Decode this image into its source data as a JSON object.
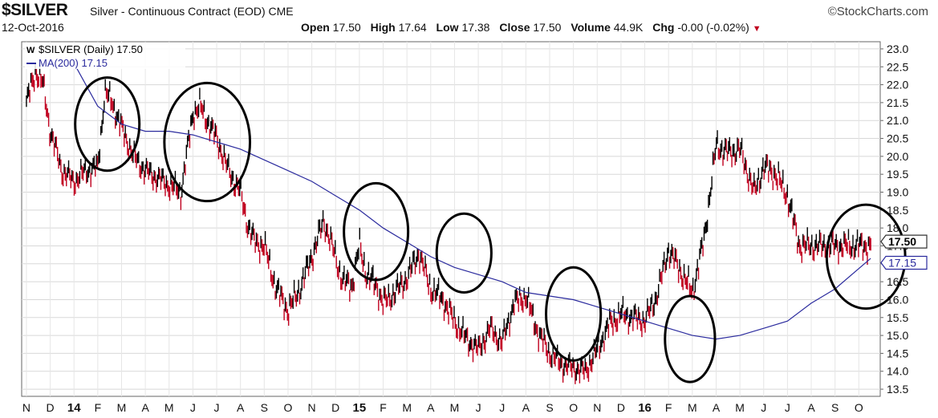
{
  "header": {
    "symbol": "$SILVER",
    "description": "Silver - Continuous Contract (EOD) CME",
    "date": "12-Oct-2016",
    "brand": "©StockCharts.com",
    "open_label": "Open",
    "open_value": "17.50",
    "high_label": "High",
    "high_value": "17.64",
    "low_label": "Low",
    "low_value": "17.38",
    "close_label": "Close",
    "close_value": "17.50",
    "volume_label": "Volume",
    "volume_value": "44.9K",
    "chg_label": "Chg",
    "chg_value": "-0.00 (-0.02%)",
    "chg_arrow": "▼"
  },
  "legend": {
    "price_entry": "$SILVER (Daily) 17.50",
    "ma_entry": "MA(200) 17.15"
  },
  "colors": {
    "up": "#000000",
    "down": "#c0001e",
    "ma": "#2b2b9e",
    "circle": "#000000"
  },
  "chart_data": {
    "type": "line",
    "style": "price bars (up black, down red) with moving-average overlay",
    "y_axis": {
      "side": "right",
      "ylim": [
        13.3,
        23.2
      ],
      "ticks": [
        "13.5",
        "14.0",
        "14.5",
        "15.0",
        "15.5",
        "16.0",
        "16.5",
        "17.0",
        "17.5",
        "18.0",
        "18.5",
        "19.0",
        "19.5",
        "20.0",
        "20.5",
        "21.0",
        "21.5",
        "22.0",
        "22.5",
        "23.0"
      ]
    },
    "x_axis": {
      "months": [
        "N",
        "D",
        "14",
        "F",
        "M",
        "A",
        "M",
        "J",
        "J",
        "A",
        "S",
        "O",
        "N",
        "D",
        "15",
        "F",
        "M",
        "A",
        "M",
        "J",
        "J",
        "A",
        "S",
        "O",
        "N",
        "D",
        "16",
        "F",
        "M",
        "A",
        "M",
        "J",
        "J",
        "A",
        "S",
        "O"
      ],
      "bold_labels": [
        "14",
        "15",
        "16"
      ]
    },
    "grid": true,
    "last_price_label": "17.50",
    "last_ma_label": "17.15",
    "series": [
      {
        "name": "$SILVER (Daily)",
        "x": [
          0,
          0.4,
          0.7,
          1,
          1.5,
          2,
          2.5,
          3,
          3.3,
          3.6,
          4,
          4.5,
          5,
          5.5,
          6,
          6.5,
          7,
          7.3,
          7.6,
          8,
          8.5,
          9,
          9.3,
          9.6,
          10,
          10.5,
          11,
          11.5,
          12,
          12.5,
          12.9,
          13.3,
          13.7,
          14,
          14.3,
          14.7,
          15,
          15.5,
          16,
          16.5,
          17,
          17.5,
          18,
          18.5,
          19,
          19.5,
          20,
          20.5,
          21,
          21.5,
          22,
          22.5,
          23,
          23.5,
          24,
          24.5,
          25,
          25.5,
          26,
          26.5,
          27,
          27.5,
          28,
          28.5,
          29,
          29.5,
          30,
          30.3,
          30.6,
          31,
          31.5,
          32,
          32.5,
          33,
          33.5,
          34,
          34.5,
          35,
          35.5
        ],
        "values": [
          21.5,
          22.4,
          22.0,
          20.7,
          19.6,
          19.3,
          19.6,
          19.7,
          21.8,
          21.5,
          20.8,
          20.0,
          19.6,
          19.4,
          19.2,
          19.0,
          21.2,
          21.4,
          21.0,
          20.5,
          19.6,
          19.0,
          18.1,
          17.6,
          17.5,
          16.3,
          15.7,
          16.3,
          17.2,
          18.2,
          17.4,
          16.5,
          16.4,
          17.5,
          16.7,
          16.4,
          15.9,
          16.2,
          16.6,
          17.3,
          16.3,
          16.0,
          15.4,
          14.9,
          14.6,
          15.2,
          14.8,
          15.9,
          16.1,
          15.1,
          14.5,
          14.2,
          14.1,
          14.0,
          14.6,
          15.3,
          15.6,
          15.5,
          15.4,
          16.1,
          17.4,
          16.8,
          16.2,
          17.7,
          20.3,
          20.1,
          20.2,
          19.6,
          19.0,
          19.7,
          19.5,
          18.9,
          17.5,
          17.5,
          17.5,
          17.5,
          17.5,
          17.5,
          17.5
        ]
      },
      {
        "name": "MA(200)",
        "x": [
          2,
          3,
          4,
          5,
          6,
          7,
          8,
          9,
          10,
          11,
          12,
          13,
          14,
          15,
          16,
          17,
          18,
          19,
          20,
          21,
          22,
          23,
          24,
          25,
          26,
          27,
          28,
          29,
          30,
          31,
          32,
          33,
          34,
          35.5
        ],
        "values": [
          22.6,
          21.4,
          20.9,
          20.7,
          20.7,
          20.6,
          20.4,
          20.2,
          19.9,
          19.6,
          19.3,
          18.9,
          18.5,
          18.0,
          17.6,
          17.2,
          16.9,
          16.7,
          16.5,
          16.2,
          16.1,
          16.0,
          15.8,
          15.6,
          15.4,
          15.2,
          15.0,
          14.9,
          15.0,
          15.2,
          15.4,
          15.9,
          16.3,
          17.15
        ]
      }
    ],
    "annotations": [
      {
        "type": "circle",
        "x": 3.4,
        "y": 20.9,
        "rx": 1.35,
        "ry": 1.3
      },
      {
        "type": "circle",
        "x": 7.6,
        "y": 20.4,
        "rx": 1.8,
        "ry": 1.65
      },
      {
        "type": "circle",
        "x": 14.7,
        "y": 17.9,
        "rx": 1.35,
        "ry": 1.35
      },
      {
        "type": "circle",
        "x": 18.4,
        "y": 17.3,
        "rx": 1.15,
        "ry": 1.1
      },
      {
        "type": "circle",
        "x": 23.0,
        "y": 15.6,
        "rx": 1.15,
        "ry": 1.3
      },
      {
        "type": "circle",
        "x": 27.9,
        "y": 14.9,
        "rx": 1.05,
        "ry": 1.2
      },
      {
        "type": "circle",
        "x": 35.3,
        "y": 17.2,
        "rx": 1.65,
        "ry": 1.45
      }
    ]
  }
}
